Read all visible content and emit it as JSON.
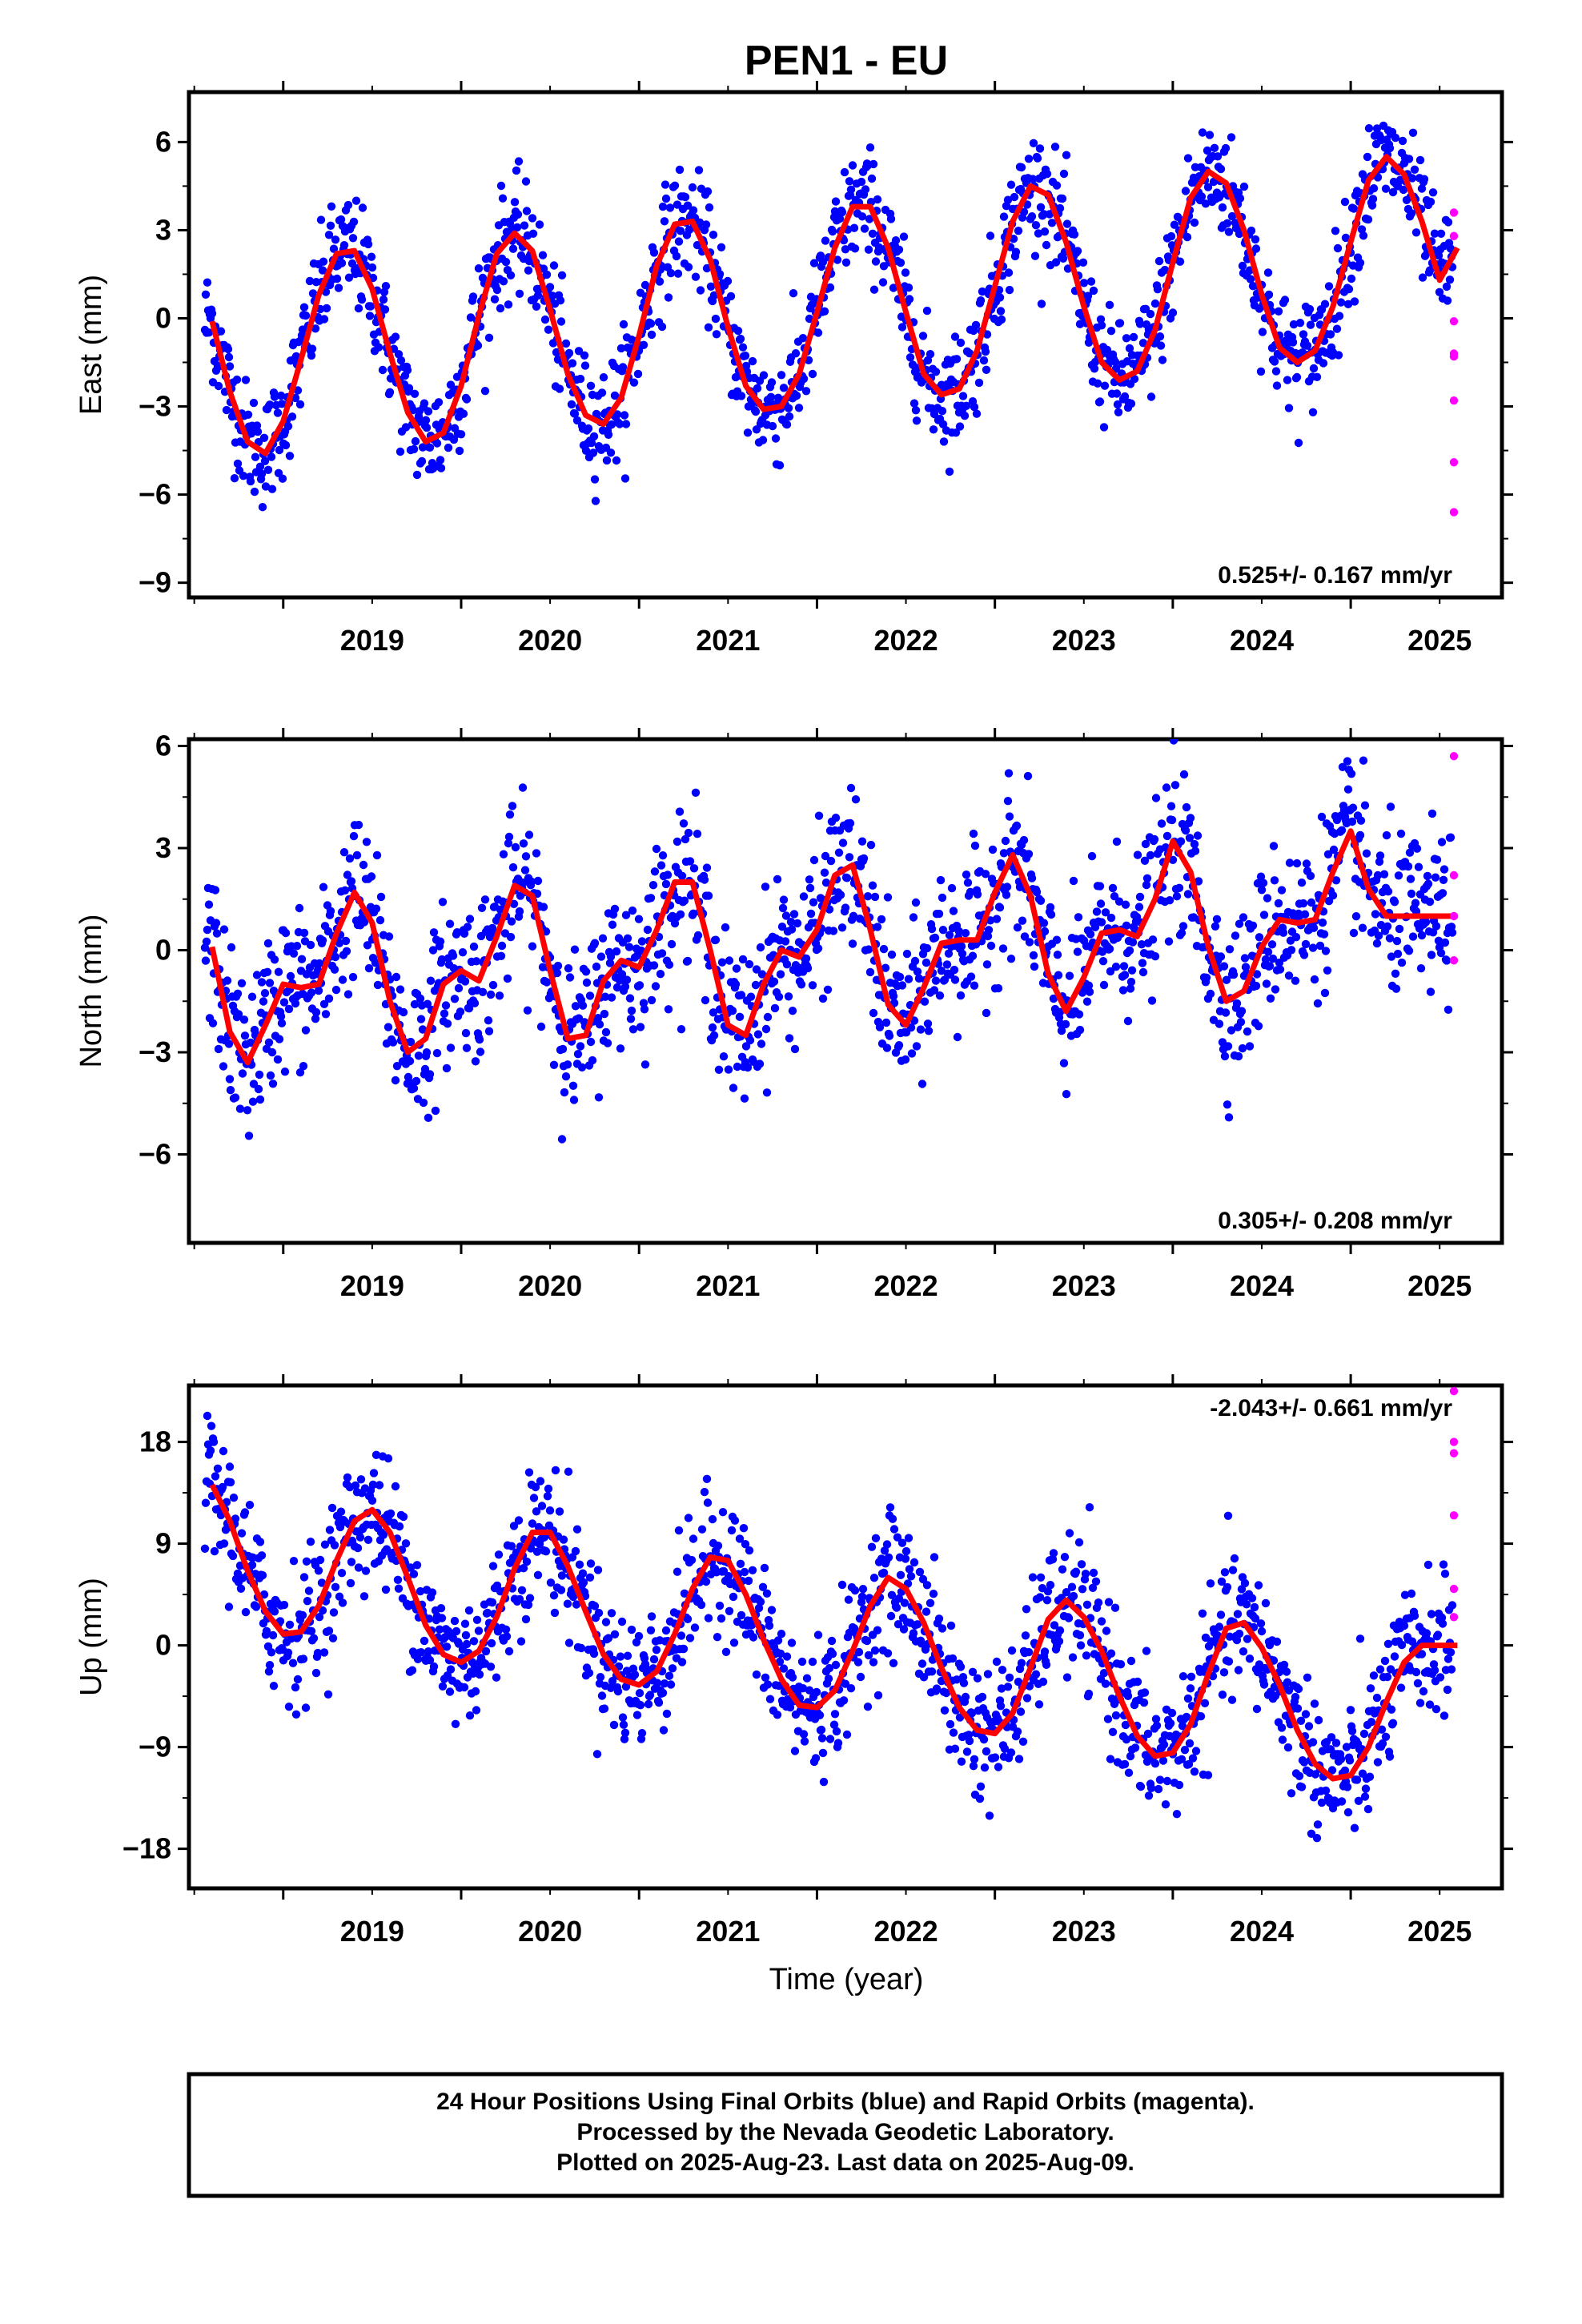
{
  "title": "PEN1 - EU",
  "xlabel": "Time (year)",
  "footer": {
    "line1": "24 Hour Positions Using Final Orbits (blue) and Rapid Orbits (magenta).",
    "line2": "Processed by the Nevada Geodetic Laboratory.",
    "line3": "Plotted on 2025-Aug-23. Last data on 2025-Aug-09."
  },
  "colors": {
    "final": "#0000ff",
    "rapid": "#ff00ff",
    "model": "#ff0000",
    "axis": "#000000"
  },
  "chart_data": [
    {
      "type": "scatter",
      "ylabel": "East (mm)",
      "rate": "0.525+/- 0.167 mm/yr",
      "xlim": [
        2018.47,
        2025.85
      ],
      "ylim": [
        -9.5,
        7.7
      ],
      "yticks": [
        6,
        3,
        0,
        -3,
        -6,
        -9
      ],
      "ytick_labels": [
        "6",
        "3",
        "0",
        "−3",
        "−6",
        "−9"
      ],
      "xticks": [
        2019,
        2020,
        2021,
        2022,
        2023,
        2024,
        2025
      ],
      "xtick_labels": [
        "2019",
        "2020",
        "2021",
        "2022",
        "2023",
        "2024",
        "2025"
      ],
      "model": {
        "x": [
          2018.6,
          2018.7,
          2018.8,
          2018.9,
          2019.0,
          2019.1,
          2019.2,
          2019.3,
          2019.4,
          2019.5,
          2019.6,
          2019.7,
          2019.8,
          2019.9,
          2020.0,
          2020.1,
          2020.2,
          2020.3,
          2020.4,
          2020.5,
          2020.6,
          2020.7,
          2020.8,
          2020.9,
          2021.0,
          2021.1,
          2021.2,
          2021.3,
          2021.4,
          2021.5,
          2021.6,
          2021.7,
          2021.8,
          2021.9,
          2022.0,
          2022.1,
          2022.2,
          2022.3,
          2022.4,
          2022.5,
          2022.6,
          2022.7,
          2022.8,
          2022.9,
          2023.0,
          2023.1,
          2023.2,
          2023.3,
          2023.4,
          2023.5,
          2023.6,
          2023.7,
          2023.8,
          2023.9,
          2024.0,
          2024.1,
          2024.2,
          2024.3,
          2024.4,
          2024.5,
          2024.6,
          2024.7,
          2024.8,
          2024.9,
          2025.0,
          2025.1,
          2025.2,
          2025.3,
          2025.4,
          2025.5,
          2025.6
        ],
        "y": [
          -0.1,
          -2.5,
          -4.2,
          -4.6,
          -3.5,
          -1.4,
          0.8,
          2.2,
          2.3,
          1.0,
          -1.2,
          -3.2,
          -4.2,
          -3.9,
          -2.3,
          0.1,
          2.2,
          2.9,
          2.3,
          0.3,
          -1.9,
          -3.3,
          -3.6,
          -2.7,
          -0.6,
          1.8,
          3.2,
          3.3,
          2.0,
          -0.3,
          -2.3,
          -3.1,
          -3.0,
          -1.9,
          0.2,
          2.4,
          3.8,
          3.8,
          2.4,
          0.2,
          -1.9,
          -2.6,
          -2.4,
          -1.1,
          1.1,
          3.3,
          4.5,
          4.2,
          2.6,
          0.4,
          -1.5,
          -2.1,
          -1.8,
          -0.4,
          1.9,
          4.1,
          5.0,
          4.6,
          3.0,
          0.8,
          -1.0,
          -1.5,
          -1.1,
          0.4,
          2.6,
          4.7,
          5.5,
          4.9,
          3.3,
          1.3,
          2.4
        ]
      },
      "rapid": {
        "x": [
          2025.58,
          2025.58,
          2025.58,
          2025.58,
          2025.58,
          2025.58,
          2025.58,
          2025.58
        ],
        "y": [
          3.6,
          -0.1,
          -1.2,
          -1.3,
          -2.8,
          -4.9,
          -6.6,
          2.8
        ]
      }
    },
    {
      "type": "scatter",
      "ylabel": "North (mm)",
      "rate": "0.305+/- 0.208 mm/yr",
      "xlim": [
        2018.47,
        2025.85
      ],
      "ylim": [
        -8.6,
        6.2
      ],
      "yticks": [
        6,
        3,
        0,
        -3,
        -6
      ],
      "ytick_labels": [
        "6",
        "3",
        "0",
        "−3",
        "−6"
      ],
      "xticks": [
        2019,
        2020,
        2021,
        2022,
        2023,
        2024,
        2025
      ],
      "xtick_labels": [
        "2019",
        "2020",
        "2021",
        "2022",
        "2023",
        "2024",
        "2025"
      ],
      "model": {
        "x": [
          2018.6,
          2018.7,
          2018.8,
          2018.9,
          2019.0,
          2019.1,
          2019.2,
          2019.3,
          2019.4,
          2019.5,
          2019.6,
          2019.7,
          2019.8,
          2019.9,
          2020.0,
          2020.1,
          2020.2,
          2020.3,
          2020.4,
          2020.5,
          2020.6,
          2020.7,
          2020.8,
          2020.9,
          2021.0,
          2021.1,
          2021.2,
          2021.3,
          2021.4,
          2021.5,
          2021.6,
          2021.7,
          2021.8,
          2021.9,
          2022.0,
          2022.1,
          2022.2,
          2022.3,
          2022.4,
          2022.5,
          2022.6,
          2022.7,
          2022.8,
          2022.9,
          2023.0,
          2023.1,
          2023.2,
          2023.3,
          2023.4,
          2023.5,
          2023.6,
          2023.7,
          2023.8,
          2023.9,
          2024.0,
          2024.1,
          2024.2,
          2024.3,
          2024.4,
          2024.5,
          2024.6,
          2024.7,
          2024.8,
          2024.9,
          2025.0,
          2025.1,
          2025.2,
          2025.3,
          2025.4,
          2025.5,
          2025.6
        ],
        "y": [
          0.1,
          -2.4,
          -3.3,
          -2.2,
          -1.0,
          -1.1,
          -1.0,
          0.5,
          1.7,
          0.8,
          -1.5,
          -3.0,
          -2.6,
          -1.0,
          -0.6,
          -0.9,
          0.4,
          1.9,
          1.6,
          -0.6,
          -2.6,
          -2.5,
          -0.9,
          -0.3,
          -0.5,
          0.6,
          2.0,
          2.0,
          0.0,
          -2.2,
          -2.5,
          -1.0,
          0.0,
          -0.2,
          0.6,
          2.2,
          2.5,
          0.6,
          -1.6,
          -2.2,
          -1.1,
          0.2,
          0.3,
          0.3,
          1.7,
          2.8,
          1.6,
          -0.7,
          -1.8,
          -0.8,
          0.5,
          0.6,
          0.4,
          1.5,
          3.2,
          2.3,
          0.1,
          -1.5,
          -1.2,
          0.1,
          0.9,
          0.8,
          0.9,
          2.3,
          3.5,
          1.8,
          1.0,
          1.0,
          1.0,
          1.0,
          1.0
        ]
      },
      "rapid": {
        "x": [
          2025.58,
          2025.58,
          2025.58,
          2025.58
        ],
        "y": [
          5.7,
          2.2,
          1.0,
          -0.3
        ]
      }
    },
    {
      "type": "scatter",
      "ylabel": "Up (mm)",
      "rate": "-2.043+/- 0.661 mm/yr",
      "xlim": [
        2018.47,
        2025.85
      ],
      "ylim": [
        -21.5,
        23
      ],
      "yticks": [
        18,
        9,
        0,
        -9,
        -18
      ],
      "ytick_labels": [
        "18",
        "9",
        "0",
        "−9",
        "−18"
      ],
      "xticks": [
        2019,
        2020,
        2021,
        2022,
        2023,
        2024,
        2025
      ],
      "xtick_labels": [
        "2019",
        "2020",
        "2021",
        "2022",
        "2023",
        "2024",
        "2025"
      ],
      "model": {
        "x": [
          2018.6,
          2018.7,
          2018.8,
          2018.9,
          2019.0,
          2019.1,
          2019.2,
          2019.3,
          2019.4,
          2019.5,
          2019.6,
          2019.7,
          2019.8,
          2019.9,
          2020.0,
          2020.1,
          2020.2,
          2020.3,
          2020.4,
          2020.5,
          2020.6,
          2020.7,
          2020.8,
          2020.9,
          2021.0,
          2021.1,
          2021.2,
          2021.3,
          2021.4,
          2021.5,
          2021.6,
          2021.7,
          2021.8,
          2021.9,
          2022.0,
          2022.1,
          2022.2,
          2022.3,
          2022.4,
          2022.5,
          2022.6,
          2022.7,
          2022.8,
          2022.9,
          2023.0,
          2023.1,
          2023.2,
          2023.3,
          2023.4,
          2023.5,
          2023.6,
          2023.7,
          2023.8,
          2023.9,
          2024.0,
          2024.1,
          2024.2,
          2024.3,
          2024.4,
          2024.5,
          2024.6,
          2024.7,
          2024.8,
          2024.9,
          2025.0,
          2025.1,
          2025.2,
          2025.3,
          2025.4,
          2025.5,
          2025.6
        ],
        "y": [
          14.2,
          11.0,
          6.6,
          3.0,
          1.0,
          1.2,
          3.5,
          7.5,
          11.0,
          12.0,
          10.0,
          6.0,
          1.8,
          -0.8,
          -1.5,
          -0.5,
          2.5,
          6.8,
          10.0,
          10.0,
          7.0,
          3.0,
          -0.8,
          -3.0,
          -3.5,
          -2.3,
          1.0,
          5.0,
          7.8,
          7.5,
          4.5,
          0.5,
          -3.0,
          -5.3,
          -5.5,
          -4.0,
          -0.5,
          3.5,
          6.0,
          5.0,
          2.0,
          -2.0,
          -5.5,
          -7.5,
          -7.8,
          -6.0,
          -2.0,
          2.3,
          4.0,
          2.5,
          -0.5,
          -4.5,
          -8.0,
          -9.8,
          -9.5,
          -7.0,
          -2.5,
          1.5,
          2.0,
          -0.2,
          -3.5,
          -7.5,
          -10.5,
          -11.8,
          -11.5,
          -9.0,
          -5.0,
          -1.5,
          0.0,
          0.0,
          0.0
        ]
      },
      "rapid": {
        "x": [
          2025.58,
          2025.58,
          2025.58,
          2025.58,
          2025.58,
          2025.58
        ],
        "y": [
          22.5,
          18.0,
          17.0,
          11.5,
          5.0,
          2.5
        ]
      }
    }
  ]
}
